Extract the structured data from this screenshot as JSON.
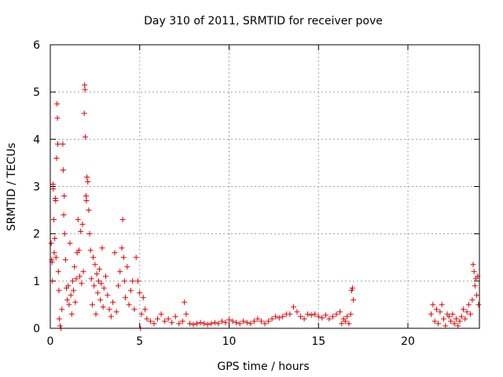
{
  "chart_data": {
    "type": "scatter",
    "title": "Day 310 of 2011, SRMTID for receiver pove",
    "xlabel": "GPS time / hours",
    "ylabel": "SRMTID / TECUs",
    "xlim": [
      0,
      24
    ],
    "ylim": [
      0,
      6
    ],
    "xticks": [
      0,
      5,
      10,
      15,
      20
    ],
    "yticks": [
      0,
      1,
      2,
      3,
      4,
      5,
      6
    ],
    "xtick_labels": [
      "0",
      "5",
      "10",
      "15",
      "20"
    ],
    "ytick_labels": [
      "0",
      "1",
      "2",
      "3",
      "4",
      "5",
      "6"
    ],
    "grid": true,
    "marker": "+",
    "color": "#dd0000",
    "series": [
      {
        "name": "SRMTID",
        "points": [
          [
            0.05,
            1.8
          ],
          [
            0.08,
            1.45
          ],
          [
            0.1,
            1.4
          ],
          [
            0.12,
            1.0
          ],
          [
            0.15,
            3.05
          ],
          [
            0.17,
            2.95
          ],
          [
            0.2,
            2.3
          ],
          [
            0.22,
            1.6
          ],
          [
            0.25,
            1.9
          ],
          [
            0.28,
            2.75
          ],
          [
            0.3,
            2.7
          ],
          [
            0.32,
            1.5
          ],
          [
            0.35,
            3.6
          ],
          [
            0.38,
            4.75
          ],
          [
            0.4,
            4.45
          ],
          [
            0.42,
            3.9
          ],
          [
            0.45,
            1.2
          ],
          [
            0.48,
            0.8
          ],
          [
            0.5,
            0.2
          ],
          [
            0.55,
            0.05
          ],
          [
            0.6,
            0.0
          ],
          [
            0.65,
            0.4
          ],
          [
            0.7,
            3.9
          ],
          [
            0.72,
            3.35
          ],
          [
            0.75,
            2.4
          ],
          [
            0.78,
            2.8
          ],
          [
            0.8,
            2.0
          ],
          [
            0.85,
            1.45
          ],
          [
            0.9,
            0.85
          ],
          [
            0.95,
            0.6
          ],
          [
            1.0,
            0.9
          ],
          [
            1.05,
            0.5
          ],
          [
            1.1,
            1.8
          ],
          [
            1.15,
            0.7
          ],
          [
            1.2,
            0.3
          ],
          [
            1.25,
            1.0
          ],
          [
            1.3,
            0.8
          ],
          [
            1.35,
            1.3
          ],
          [
            1.4,
            0.55
          ],
          [
            1.45,
            1.05
          ],
          [
            1.5,
            1.6
          ],
          [
            1.55,
            2.3
          ],
          [
            1.6,
            1.65
          ],
          [
            1.65,
            1.1
          ],
          [
            1.7,
            2.05
          ],
          [
            1.75,
            0.95
          ],
          [
            1.8,
            2.2
          ],
          [
            1.85,
            1.2
          ],
          [
            1.9,
            4.55
          ],
          [
            1.92,
            5.15
          ],
          [
            1.94,
            5.05
          ],
          [
            1.96,
            4.05
          ],
          [
            2.0,
            2.8
          ],
          [
            2.02,
            2.7
          ],
          [
            2.05,
            3.2
          ],
          [
            2.1,
            3.1
          ],
          [
            2.15,
            2.5
          ],
          [
            2.2,
            2.0
          ],
          [
            2.25,
            1.65
          ],
          [
            2.3,
            1.05
          ],
          [
            2.35,
            0.5
          ],
          [
            2.4,
            1.5
          ],
          [
            2.45,
            0.9
          ],
          [
            2.5,
            1.35
          ],
          [
            2.55,
            0.3
          ],
          [
            2.6,
            1.15
          ],
          [
            2.65,
            0.75
          ],
          [
            2.7,
            1.0
          ],
          [
            2.75,
            1.25
          ],
          [
            2.8,
            0.6
          ],
          [
            2.85,
            0.95
          ],
          [
            2.9,
            1.7
          ],
          [
            2.95,
            0.45
          ],
          [
            3.0,
            0.85
          ],
          [
            3.1,
            1.1
          ],
          [
            3.2,
            0.7
          ],
          [
            3.3,
            0.4
          ],
          [
            3.4,
            0.25
          ],
          [
            3.5,
            0.55
          ],
          [
            3.6,
            1.6
          ],
          [
            3.7,
            0.35
          ],
          [
            3.8,
            0.9
          ],
          [
            3.9,
            1.2
          ],
          [
            4.0,
            1.7
          ],
          [
            4.05,
            2.3
          ],
          [
            4.1,
            1.5
          ],
          [
            4.15,
            1.0
          ],
          [
            4.2,
            0.65
          ],
          [
            4.3,
            1.3
          ],
          [
            4.4,
            0.5
          ],
          [
            4.5,
            0.8
          ],
          [
            4.6,
            1.0
          ],
          [
            4.7,
            0.4
          ],
          [
            4.8,
            1.5
          ],
          [
            4.9,
            1.0
          ],
          [
            5.0,
            0.75
          ],
          [
            5.05,
            0.0
          ],
          [
            5.1,
            0.3
          ],
          [
            5.2,
            0.65
          ],
          [
            5.3,
            0.4
          ],
          [
            5.4,
            0.2
          ],
          [
            5.6,
            0.15
          ],
          [
            5.8,
            0.1
          ],
          [
            6.0,
            0.2
          ],
          [
            6.2,
            0.3
          ],
          [
            6.4,
            0.15
          ],
          [
            6.6,
            0.2
          ],
          [
            6.8,
            0.12
          ],
          [
            7.0,
            0.25
          ],
          [
            7.2,
            0.1
          ],
          [
            7.4,
            0.15
          ],
          [
            7.5,
            0.55
          ],
          [
            7.6,
            0.3
          ],
          [
            7.8,
            0.1
          ],
          [
            8.0,
            0.08
          ],
          [
            8.2,
            0.1
          ],
          [
            8.4,
            0.12
          ],
          [
            8.6,
            0.1
          ],
          [
            8.8,
            0.08
          ],
          [
            9.0,
            0.1
          ],
          [
            9.2,
            0.12
          ],
          [
            9.4,
            0.1
          ],
          [
            9.6,
            0.15
          ],
          [
            9.8,
            0.12
          ],
          [
            10.0,
            0.18
          ],
          [
            10.2,
            0.15
          ],
          [
            10.4,
            0.12
          ],
          [
            10.6,
            0.1
          ],
          [
            10.8,
            0.15
          ],
          [
            11.0,
            0.12
          ],
          [
            11.2,
            0.1
          ],
          [
            11.4,
            0.15
          ],
          [
            11.6,
            0.2
          ],
          [
            11.8,
            0.15
          ],
          [
            12.0,
            0.1
          ],
          [
            12.2,
            0.15
          ],
          [
            12.4,
            0.2
          ],
          [
            12.6,
            0.25
          ],
          [
            12.8,
            0.22
          ],
          [
            13.0,
            0.25
          ],
          [
            13.2,
            0.3
          ],
          [
            13.4,
            0.3
          ],
          [
            13.6,
            0.45
          ],
          [
            13.8,
            0.35
          ],
          [
            14.0,
            0.25
          ],
          [
            14.2,
            0.2
          ],
          [
            14.4,
            0.3
          ],
          [
            14.6,
            0.28
          ],
          [
            14.8,
            0.3
          ],
          [
            15.0,
            0.25
          ],
          [
            15.2,
            0.22
          ],
          [
            15.4,
            0.28
          ],
          [
            15.6,
            0.2
          ],
          [
            15.8,
            0.25
          ],
          [
            16.0,
            0.3
          ],
          [
            16.2,
            0.35
          ],
          [
            16.3,
            0.1
          ],
          [
            16.4,
            0.2
          ],
          [
            16.5,
            0.15
          ],
          [
            16.6,
            0.25
          ],
          [
            16.7,
            0.1
          ],
          [
            16.8,
            0.3
          ],
          [
            16.85,
            0.8
          ],
          [
            16.9,
            0.85
          ],
          [
            16.95,
            0.6
          ],
          [
            21.3,
            0.3
          ],
          [
            21.4,
            0.5
          ],
          [
            21.5,
            0.15
          ],
          [
            21.6,
            0.4
          ],
          [
            21.7,
            0.1
          ],
          [
            21.8,
            0.35
          ],
          [
            21.9,
            0.5
          ],
          [
            22.0,
            0.2
          ],
          [
            22.1,
            0.05
          ],
          [
            22.2,
            0.3
          ],
          [
            22.3,
            0.25
          ],
          [
            22.4,
            0.15
          ],
          [
            22.5,
            0.3
          ],
          [
            22.6,
            0.1
          ],
          [
            22.7,
            0.2
          ],
          [
            22.8,
            0.05
          ],
          [
            22.9,
            0.15
          ],
          [
            23.0,
            0.25
          ],
          [
            23.1,
            0.4
          ],
          [
            23.2,
            0.2
          ],
          [
            23.3,
            0.35
          ],
          [
            23.4,
            0.5
          ],
          [
            23.5,
            0.3
          ],
          [
            23.6,
            0.6
          ],
          [
            23.65,
            1.35
          ],
          [
            23.7,
            1.2
          ],
          [
            23.75,
            0.9
          ],
          [
            23.8,
            1.05
          ],
          [
            23.85,
            0.7
          ],
          [
            23.9,
            1.1
          ],
          [
            23.95,
            0.5
          ]
        ]
      }
    ]
  }
}
